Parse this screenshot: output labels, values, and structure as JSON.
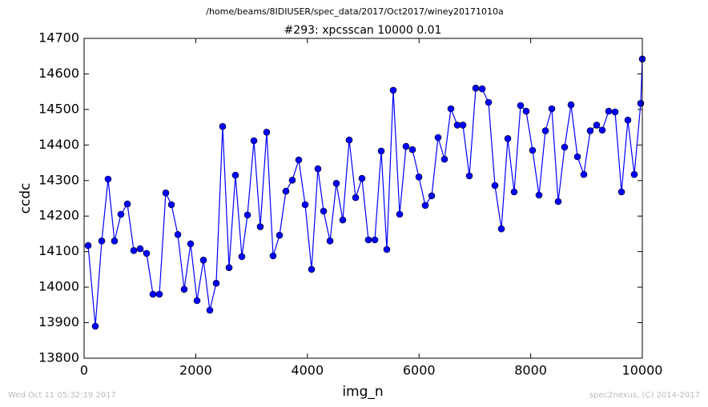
{
  "chart_data": {
    "type": "line",
    "suptitle": "/home/beams/8IDIUSER/spec_data/2017/Oct2017/winey20171010a",
    "title": "#293: xpcsscan 10000 0.01",
    "x_label": "img_n",
    "y_label": "ccdc",
    "footer_left": "Wed Oct 11 05:32:19 2017",
    "footer_right": "spec2nexus, (C) 2014-2017",
    "xlim": [
      0,
      10000
    ],
    "xticks": [
      0,
      2000,
      4000,
      6000,
      8000,
      10000
    ],
    "ylim": [
      13800,
      14700
    ],
    "yticks": [
      13800,
      13900,
      14000,
      14100,
      14200,
      14300,
      14400,
      14500,
      14600,
      14700
    ],
    "series": [
      {
        "name": "ccdc",
        "color": "#0000ff",
        "x": [
          72,
          201,
          316,
          430,
          545,
          660,
          775,
          890,
          1004,
          1119,
          1234,
          1349,
          1463,
          1564,
          1679,
          1793,
          1908,
          2023,
          2138,
          2252,
          2367,
          2482,
          2597,
          2711,
          2826,
          2927,
          3042,
          3156,
          3271,
          3386,
          3501,
          3615,
          3730,
          3845,
          3960,
          4075,
          4189,
          4290,
          4405,
          4519,
          4634,
          4749,
          4864,
          4978,
          5093,
          5208,
          5323,
          5423,
          5538,
          5653,
          5767,
          5882,
          5997,
          6112,
          6227,
          6341,
          6456,
          6571,
          6686,
          6786,
          6901,
          7016,
          7131,
          7245,
          7360,
          7475,
          7590,
          7704,
          7819,
          7919,
          8034,
          8149,
          8264,
          8379,
          8493,
          8608,
          8723,
          8838,
          8952,
          9067,
          9182,
          9282,
          9397,
          9512,
          9627,
          9741,
          9856,
          9971,
          10000
        ],
        "values": [
          14117,
          13890,
          14130,
          14304,
          14130,
          14205,
          14234,
          14103,
          14108,
          14095,
          13980,
          13980,
          14265,
          14232,
          14148,
          13994,
          14122,
          13962,
          14076,
          13935,
          14011,
          14452,
          14055,
          14315,
          14086,
          14203,
          14412,
          14170,
          14436,
          14088,
          14146,
          14270,
          14301,
          14358,
          14232,
          14050,
          14333,
          14214,
          14130,
          14292,
          14189,
          14414,
          14252,
          14306,
          14133,
          14133,
          14383,
          14106,
          14554,
          14205,
          14396,
          14387,
          14310,
          14230,
          14257,
          14421,
          14360,
          14502,
          14456,
          14456,
          14313,
          14560,
          14558,
          14520,
          14286,
          14164,
          14418,
          14268,
          14511,
          14495,
          14385,
          14259,
          14440,
          14502,
          14241,
          14394,
          14513,
          14367,
          14317,
          14440,
          14456,
          14442,
          14495,
          14493,
          14268,
          14470,
          14317,
          14517,
          14642
        ]
      }
    ]
  }
}
